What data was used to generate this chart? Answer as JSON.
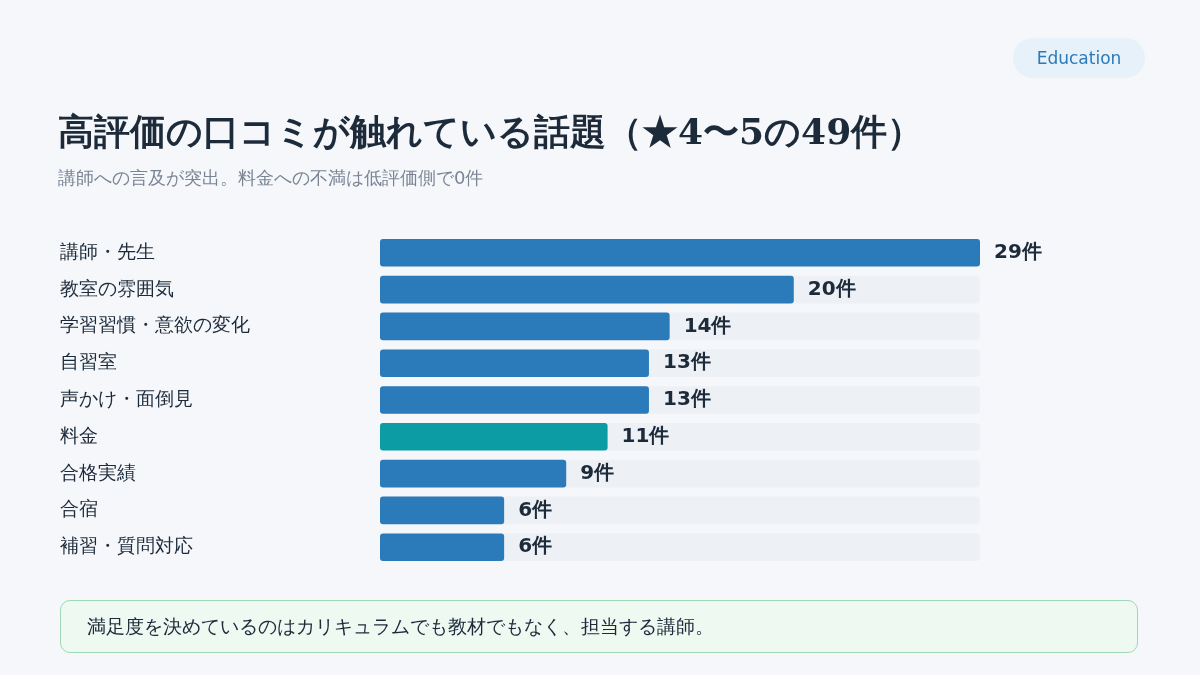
{
  "chart_data": {
    "type": "bar",
    "orientation": "horizontal",
    "title": "高評価の口コミが触れている話題（★4〜5の49件）",
    "subtitle": "講師への言及が突出。料金への不満は低評価側で0件",
    "categories": [
      "講師・先生",
      "教室の雰囲気",
      "学習習慣・意欲の変化",
      "自習室",
      "声かけ・面倒見",
      "料金",
      "合格実績",
      "合宿",
      "補習・質問対応"
    ],
    "values": [
      29,
      20,
      14,
      13,
      13,
      11,
      9,
      6,
      6
    ],
    "colors": [
      "#2b7bba",
      "#2b7bba",
      "#2b7bba",
      "#2b7bba",
      "#2b7bba",
      "#0c9ca3",
      "#2b7bba",
      "#2b7bba",
      "#2b7bba"
    ],
    "value_labels": [
      "29件",
      "20件",
      "14件",
      "13件",
      "13件",
      "11件",
      "9件",
      "6件",
      "6件"
    ],
    "xlim": [
      0,
      29
    ],
    "tick_labels": "y",
    "grid": false,
    "legend": false,
    "annotations": [
      "Education",
      "満足度を決めているのはカリキュラムでも教材でもなく、担当する講師。"
    ]
  }
}
